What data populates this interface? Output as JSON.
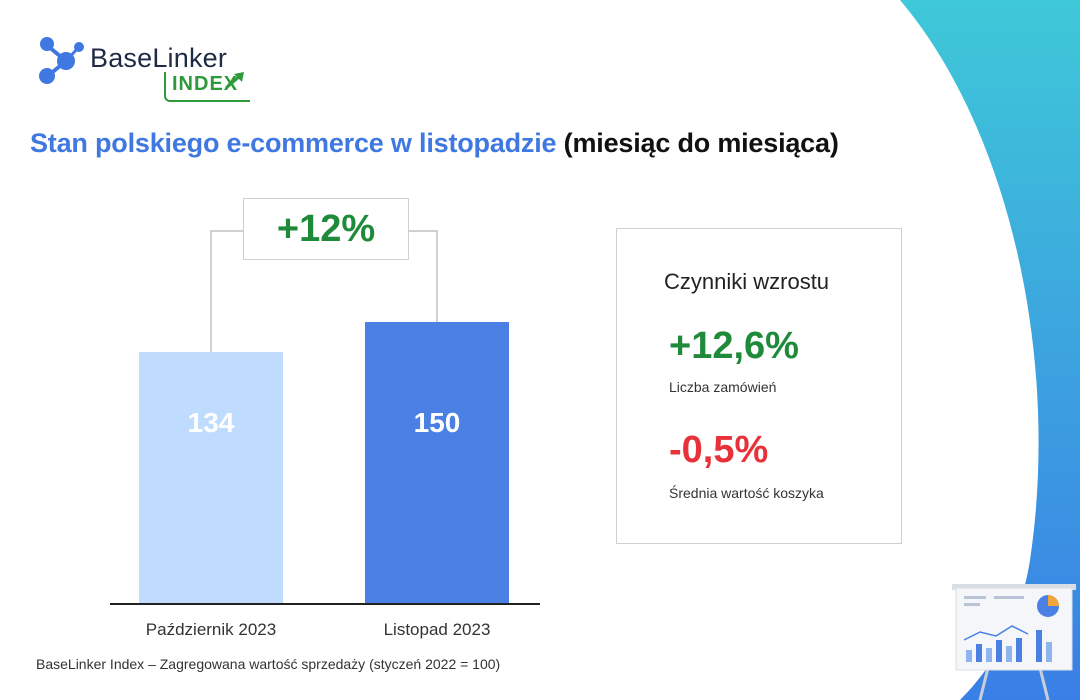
{
  "brand": {
    "name": "BaseLinker",
    "sub": "INDEX"
  },
  "title": {
    "main": "Stan polskiego e-commerce w listopadzie",
    "suffix": "(miesiąc do miesiąca)"
  },
  "chart_data": {
    "type": "bar",
    "categories": [
      "Październik 2023",
      "Listopad 2023"
    ],
    "values": [
      134,
      150
    ],
    "data_labels": [
      "134",
      "150"
    ],
    "colors": [
      "#bfdbfd",
      "#4a80e4"
    ],
    "change_label": "+12%",
    "caption": "BaseLinker Index – Zagregowana wartość sprzedaży (styczeń 2022 = 100)",
    "title": "",
    "xlabel": "",
    "ylabel": "",
    "grid": false,
    "legend": "none"
  },
  "factors": {
    "title": "Czynniki wzrostu",
    "items": [
      {
        "value": "+12,6%",
        "label": "Liczba zamówień",
        "color": "#1e8a3a"
      },
      {
        "value": "-0,5%",
        "label": "Średnia wartość koszyka",
        "color": "#e8323a"
      }
    ]
  },
  "colors": {
    "accent": "#3f78e0",
    "positive": "#1e8a3a",
    "negative": "#e8323a",
    "arc_top": "#3ec8d8",
    "arc_bottom": "#3a7fe6"
  },
  "icons": [
    "baselinker-logo-icon",
    "trend-arrow-icon",
    "presentation-board-icon"
  ]
}
